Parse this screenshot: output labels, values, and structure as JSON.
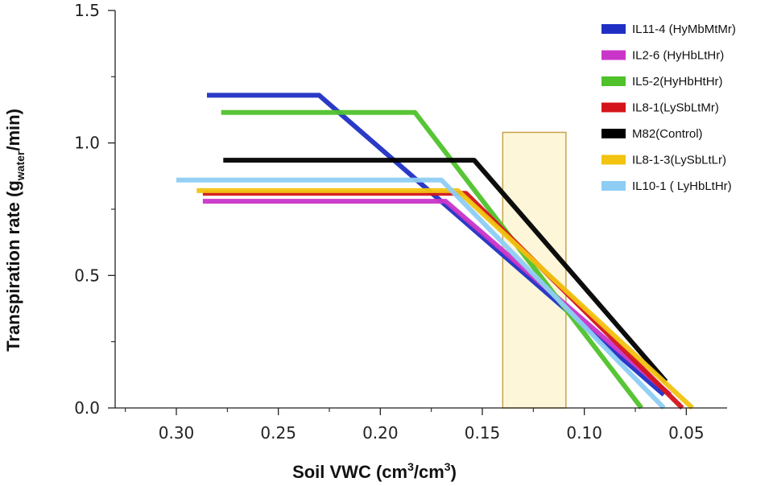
{
  "chart_data": {
    "type": "line",
    "title": "",
    "xlabel": {
      "main": "Soil VWC (cm",
      "sup1": "3",
      "mid": "/cm",
      "sup2": "3",
      "end": ")"
    },
    "ylabel": {
      "main": "Transpiration rate (g",
      "sub": "water",
      "end": "/min)"
    },
    "x_reversed": true,
    "xlim": [
      0.33,
      0.03
    ],
    "ylim": [
      0,
      1.5
    ],
    "x_ticks": [
      {
        "value": 0.3,
        "label": "0.30"
      },
      {
        "value": 0.25,
        "label": "0.25"
      },
      {
        "value": 0.2,
        "label": "0.20"
      },
      {
        "value": 0.15,
        "label": "0.15"
      },
      {
        "value": 0.1,
        "label": "0.10"
      },
      {
        "value": 0.05,
        "label": "0.05"
      }
    ],
    "y_ticks": [
      {
        "value": 0.0,
        "label": "0.0"
      },
      {
        "value": 0.5,
        "label": "0.5"
      },
      {
        "value": 1.0,
        "label": "1.0"
      },
      {
        "value": 1.5,
        "label": "1.5"
      }
    ],
    "grid": false,
    "legend_position": "top-right",
    "highlight_region": {
      "x_range": [
        0.14,
        0.109
      ],
      "y_range": [
        0,
        1.04
      ],
      "fill": "#fdf6d9",
      "stroke": "#c8a24c"
    },
    "series": [
      {
        "name": "IL11-4 (HyMbMtMr)",
        "color": "#1f2fc4",
        "points": [
          [
            0.285,
            1.18
          ],
          [
            0.23,
            1.18
          ],
          [
            0.061,
            0.05
          ]
        ]
      },
      {
        "name": "IL2-6 (HyHbLtHr)",
        "color": "#c935c8",
        "points": [
          [
            0.287,
            0.78
          ],
          [
            0.168,
            0.78
          ],
          [
            0.058,
            0.05
          ]
        ]
      },
      {
        "name": "IL5-2(HyHbHtHr)",
        "color": "#4fc22b",
        "points": [
          [
            0.278,
            1.115
          ],
          [
            0.183,
            1.115
          ],
          [
            0.072,
            0.0
          ]
        ]
      },
      {
        "name": "IL8-1(LySbLtMr)",
        "color": "#d4141a",
        "points": [
          [
            0.287,
            0.81
          ],
          [
            0.158,
            0.81
          ],
          [
            0.052,
            0.0
          ]
        ]
      },
      {
        "name": "M82(Control)",
        "color": "#000000",
        "points": [
          [
            0.277,
            0.935
          ],
          [
            0.154,
            0.935
          ],
          [
            0.06,
            0.1
          ]
        ]
      },
      {
        "name": "IL8-1-3(LySbLtLr)",
        "color": "#f2c30f",
        "points": [
          [
            0.29,
            0.82
          ],
          [
            0.162,
            0.82
          ],
          [
            0.047,
            0.0
          ]
        ]
      },
      {
        "name": "IL10-1 ( LyHbLtHr)",
        "color": "#8ecdf4",
        "points": [
          [
            0.3,
            0.86
          ],
          [
            0.17,
            0.86
          ],
          [
            0.061,
            0.0
          ]
        ]
      }
    ]
  }
}
